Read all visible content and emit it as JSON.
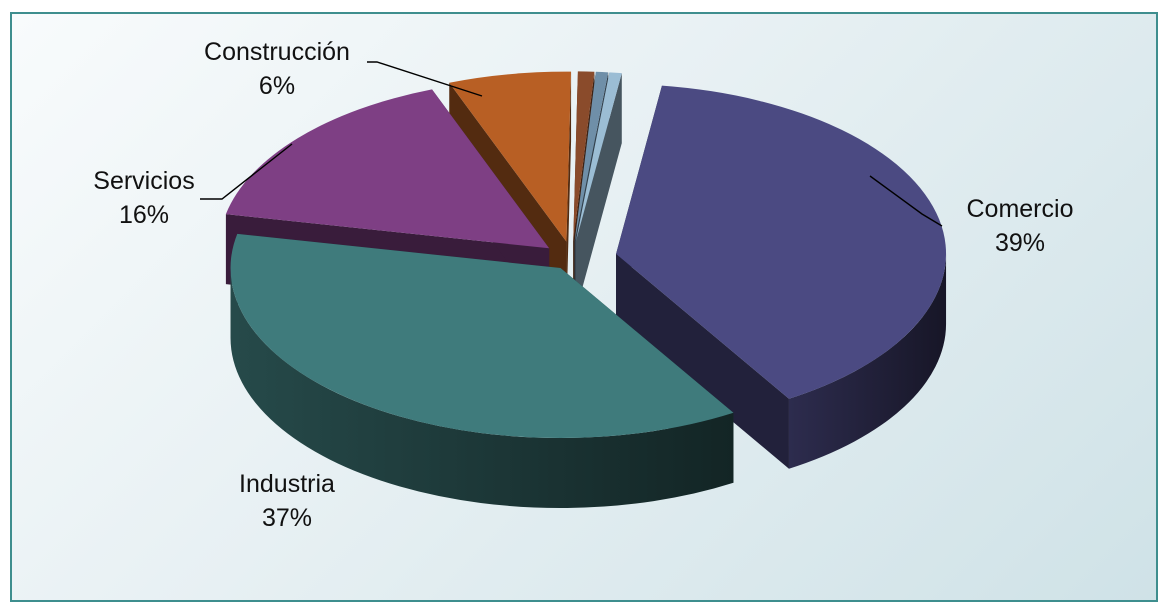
{
  "chart_data": {
    "type": "pie",
    "style": "3d-exploded",
    "title": "",
    "slices": [
      {
        "label": "Comercio",
        "value": 39,
        "percent_label": "39%",
        "color": "#4b4a82"
      },
      {
        "label": "Industria",
        "value": 37,
        "percent_label": "37%",
        "color": "#3f7b7c"
      },
      {
        "label": "Servicios",
        "value": 16,
        "percent_label": "16%",
        "color": "#7e3f84"
      },
      {
        "label": "Construcción",
        "value": 6,
        "percent_label": "6%",
        "color": "#b85f24"
      },
      {
        "label": "",
        "value": 0.8,
        "percent_label": "",
        "color": "#8a4b2b"
      },
      {
        "label": "",
        "value": 0.6,
        "percent_label": "",
        "color": "#6f8fa8"
      },
      {
        "label": "",
        "value": 0.6,
        "percent_label": "",
        "color": "#9bbdd4"
      }
    ],
    "legend": "none"
  }
}
